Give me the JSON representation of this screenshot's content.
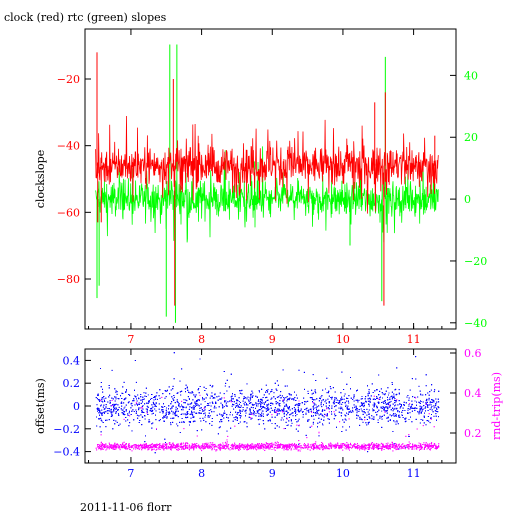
{
  "title": "clock (red) rtc (green) slopes",
  "footer": "2011-11-06 florr",
  "colors": {
    "clock": "#ff0000",
    "rtc": "#00ff00",
    "offset": "#0000ff",
    "rtt": "#ff00ff",
    "frame": "#000000"
  },
  "chart_data": [
    {
      "type": "line",
      "title": "clock (red) rtc (green) slopes",
      "xlabel": "",
      "ylabel": "clockslope",
      "x_range": [
        6.35,
        11.6
      ],
      "x_ticks": [
        7,
        8,
        9,
        10,
        11
      ],
      "y_left": {
        "range": [
          -95,
          -5
        ],
        "ticks": [
          -20,
          -40,
          -60,
          -80
        ],
        "color": "#ff0000",
        "label": "clockslope"
      },
      "y_right": {
        "range": [
          -42,
          55
        ],
        "ticks": [
          40,
          20,
          0,
          -20,
          -40
        ],
        "color": "#00ff00"
      },
      "series": [
        {
          "name": "clock",
          "color": "#ff0000",
          "axis": "left",
          "x_range": [
            6.5,
            11.35
          ],
          "baseline": -46,
          "noise": 4,
          "spikes": [
            {
              "x": 6.52,
              "y": -12
            },
            {
              "x": 6.53,
              "y": -63
            },
            {
              "x": 6.58,
              "y": -63
            },
            {
              "x": 7.6,
              "y": -20
            },
            {
              "x": 7.62,
              "y": -88
            },
            {
              "x": 10.45,
              "y": -27
            },
            {
              "x": 10.58,
              "y": -88
            },
            {
              "x": 10.6,
              "y": -24
            },
            {
              "x": 11.3,
              "y": -37
            }
          ]
        },
        {
          "name": "rtc",
          "color": "#00ff00",
          "axis": "right",
          "x_range": [
            6.5,
            11.35
          ],
          "baseline": 0,
          "noise": 4,
          "spikes": [
            {
              "x": 6.52,
              "y": -32
            },
            {
              "x": 6.55,
              "y": -28
            },
            {
              "x": 7.5,
              "y": -38
            },
            {
              "x": 7.55,
              "y": 50
            },
            {
              "x": 7.63,
              "y": -40
            },
            {
              "x": 7.65,
              "y": 50
            },
            {
              "x": 10.1,
              "y": -15
            },
            {
              "x": 10.55,
              "y": -33
            },
            {
              "x": 10.6,
              "y": 46
            }
          ]
        }
      ]
    },
    {
      "type": "scatter",
      "xlabel": "",
      "ylabel": "offset(ms)",
      "y2label": "rnd-trip(ms)",
      "x_range": [
        6.35,
        11.6
      ],
      "x_ticks": [
        7,
        8,
        9,
        10,
        11
      ],
      "y_left": {
        "range": [
          -0.5,
          0.5
        ],
        "ticks": [
          0.4,
          0.2,
          0,
          -0.2,
          -0.4
        ],
        "color": "#0000ff",
        "label": "offset(ms)"
      },
      "y_right": {
        "range": [
          0.05,
          0.62
        ],
        "ticks": [
          0.6,
          0.4,
          0.2
        ],
        "color": "#ff00ff",
        "label": "rnd-trip(ms)"
      },
      "series": [
        {
          "name": "offset",
          "color": "#0000ff",
          "axis": "left",
          "x_range": [
            6.5,
            11.35
          ],
          "center": 0.0,
          "spread": 0.12
        },
        {
          "name": "rnd-trip",
          "color": "#ff00ff",
          "axis": "right",
          "x_range": [
            6.5,
            11.35
          ],
          "center": 0.135,
          "spread": 0.012
        }
      ]
    }
  ]
}
